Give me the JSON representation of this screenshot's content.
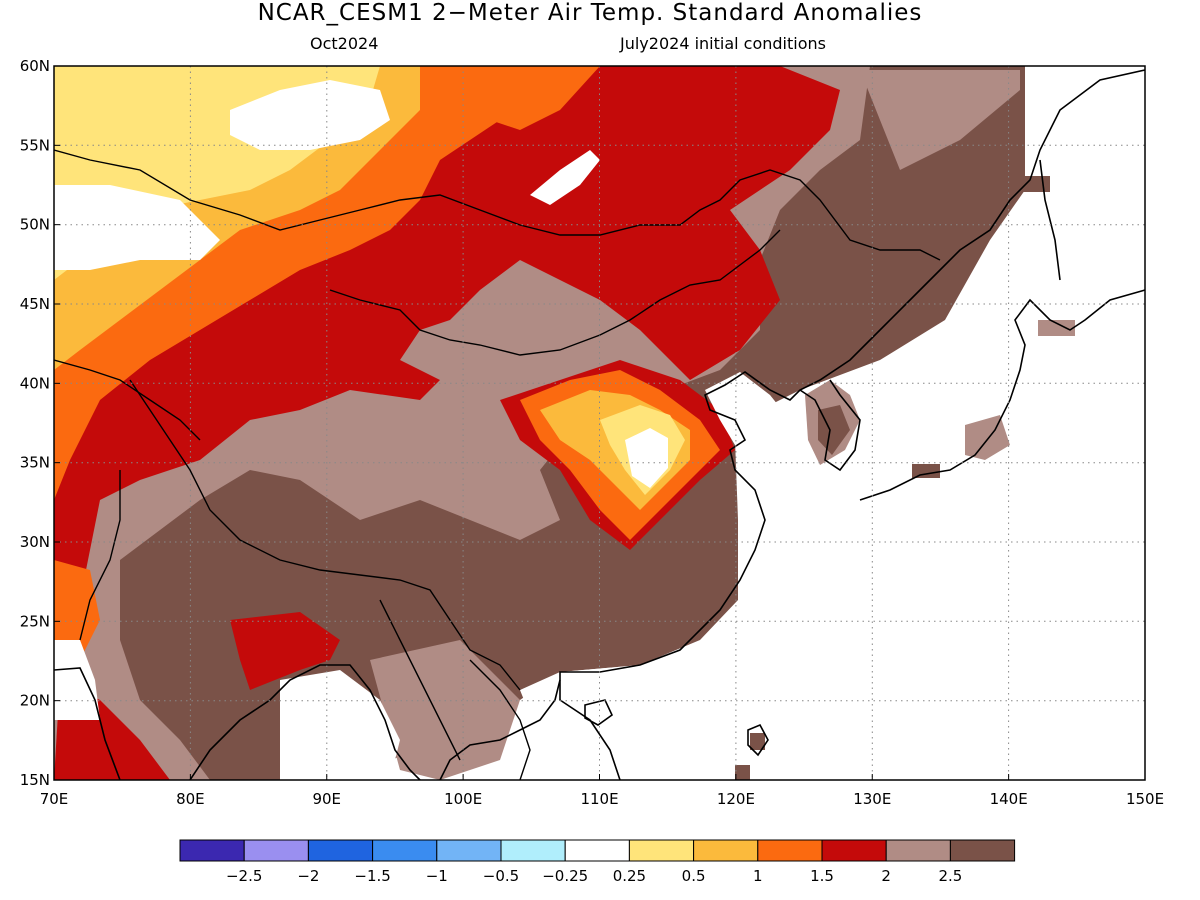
{
  "title": "NCAR_CESM1 2−Meter Air Temp. Standard Anomalies",
  "subtitle_left": "Oct2024",
  "subtitle_right": "July2024 initial conditions",
  "map": {
    "lon_range": [
      70,
      150
    ],
    "lat_range": [
      15,
      60
    ],
    "lon_ticks": [
      {
        "value": 70,
        "label": "70E"
      },
      {
        "value": 80,
        "label": "80E"
      },
      {
        "value": 90,
        "label": "90E"
      },
      {
        "value": 100,
        "label": "100E"
      },
      {
        "value": 110,
        "label": "110E"
      },
      {
        "value": 120,
        "label": "120E"
      },
      {
        "value": 130,
        "label": "130E"
      },
      {
        "value": 140,
        "label": "140E"
      },
      {
        "value": 150,
        "label": "150E"
      }
    ],
    "lat_ticks": [
      {
        "value": 15,
        "label": "15N"
      },
      {
        "value": 20,
        "label": "20N"
      },
      {
        "value": 25,
        "label": "25N"
      },
      {
        "value": 30,
        "label": "30N"
      },
      {
        "value": 35,
        "label": "35N"
      },
      {
        "value": 40,
        "label": "40N"
      },
      {
        "value": 45,
        "label": "45N"
      },
      {
        "value": 50,
        "label": "50N"
      },
      {
        "value": 55,
        "label": "55N"
      },
      {
        "value": 60,
        "label": "60N"
      }
    ],
    "grid": "dotted"
  },
  "colorbar": {
    "colors": [
      "#3b28b0",
      "#9a8ff0",
      "#1f64e0",
      "#3a8cf0",
      "#72b4f6",
      "#b0eefc",
      "#ffffff",
      "#ffe47a",
      "#fbba3c",
      "#fb6a10",
      "#c40a0a",
      "#b08c85",
      "#7a5248"
    ],
    "labels": [
      "−2.5",
      "−2",
      "−1.5",
      "−1",
      "−0.5",
      "−0.25",
      "0.25",
      "0.5",
      "1",
      "1.5",
      "2",
      "2.5"
    ]
  }
}
